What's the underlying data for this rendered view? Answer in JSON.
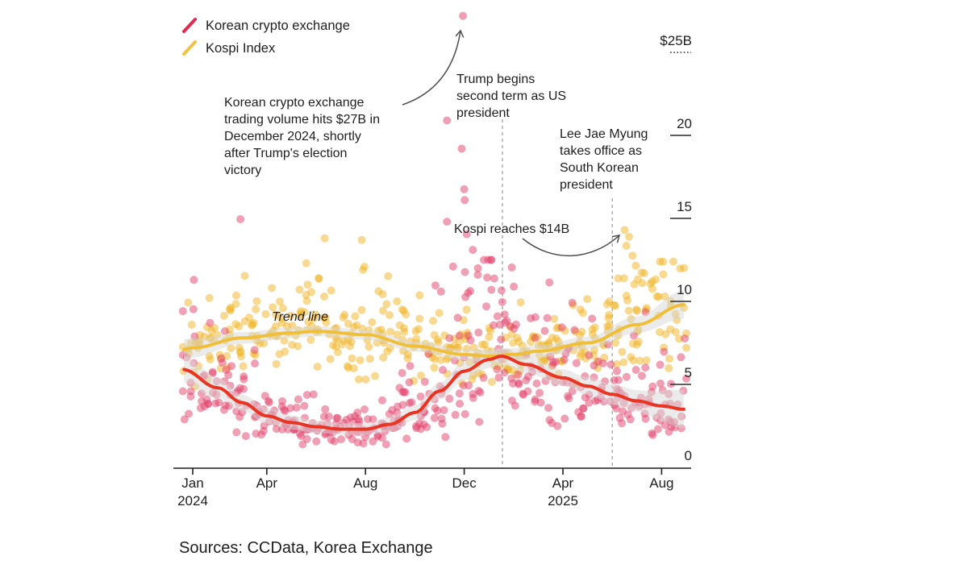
{
  "legend": {
    "items": [
      {
        "label": "Korean crypto exchange",
        "color": "#e12a4e"
      },
      {
        "label": "Kospi Index",
        "color": "#f2c343"
      }
    ]
  },
  "annotations": {
    "crypto_spike": {
      "lines": [
        "Korean crypto exchange",
        "trading volume hits $27B in",
        "December 2024, shortly",
        "after Trump's election",
        "victory"
      ]
    },
    "trump": {
      "lines": [
        "Trump begins",
        "second term as US",
        "president"
      ]
    },
    "lee": {
      "lines": [
        "Lee Jae Myung",
        "takes office as",
        "South Korean",
        "president"
      ]
    },
    "kospi_reach": {
      "text": "Kospi reaches $14B"
    }
  },
  "source": "Sources: CCData, Korea Exchange",
  "chart_data": {
    "type": "scatter",
    "trend_label": "Trend line",
    "x_axis": {
      "start": "Jan 2024",
      "end": "Aug 2025",
      "tick_months": [
        0,
        3,
        7,
        11,
        15,
        19
      ],
      "tick_labels": [
        "Jan",
        "Apr",
        "Aug",
        "Dec",
        "Apr",
        "Aug"
      ],
      "year_labels": [
        {
          "month": 0,
          "label": "2024"
        },
        {
          "month": 15,
          "label": "2025"
        }
      ]
    },
    "y_axis": {
      "unit": "billions USD",
      "ticks": [
        0,
        5,
        10,
        15,
        20,
        25
      ],
      "tick_labels": [
        "0",
        "5",
        "10",
        "15",
        "20",
        "$25B"
      ],
      "ylim": [
        0,
        27.5
      ]
    },
    "event_lines": [
      {
        "month": 12.55,
        "label": "Trump begins second term as US president"
      },
      {
        "month": 17.0,
        "label": "Lee Jae Myung takes office as South Korean president"
      }
    ],
    "series": [
      {
        "key": "kospi",
        "name": "Kospi Index",
        "dot_color": "#f0b424",
        "dot_opacity": 0.5,
        "line_color": "#f0bf3a",
        "band_color": "#d8d8d8",
        "trend": [
          [
            -0.4,
            7.1
          ],
          [
            0,
            7.2
          ],
          [
            2,
            7.8
          ],
          [
            4,
            8.1
          ],
          [
            5,
            8.2
          ],
          [
            7,
            8.0
          ],
          [
            9,
            7.3
          ],
          [
            11,
            6.8
          ],
          [
            12,
            6.7
          ],
          [
            13,
            6.8
          ],
          [
            14,
            7.0
          ],
          [
            16,
            7.5
          ],
          [
            18,
            8.6
          ],
          [
            19.9,
            9.8
          ]
        ],
        "band_halfwidth": [
          [
            -0.4,
            0.6
          ],
          [
            2,
            0.35
          ],
          [
            6,
            0.3
          ],
          [
            10,
            0.32
          ],
          [
            12.5,
            0.38
          ],
          [
            16,
            0.38
          ],
          [
            18,
            0.5
          ],
          [
            19.9,
            0.85
          ]
        ],
        "scatter": {
          "count": 400,
          "seed": 20240101,
          "sigma": [
            [
              -0.4,
              0.15
            ],
            [
              6,
              0.16
            ],
            [
              10,
              0.15
            ],
            [
              14,
              0.16
            ],
            [
              17,
              0.18
            ],
            [
              20,
              0.19
            ]
          ],
          "clamp": [
            3.9,
            12.4
          ],
          "spike": {
            "range": [
              16.3,
              19.6
            ],
            "prob": 0.06,
            "value_range": [
              9.8,
              12.3
            ]
          }
        },
        "outliers": [
          [
            17.5,
            14.3
          ],
          [
            17.68,
            13.9
          ],
          [
            17.57,
            13.35
          ],
          [
            17.82,
            12.75
          ],
          [
            17.95,
            12.15
          ],
          [
            5.35,
            13.8
          ],
          [
            6.85,
            13.7
          ],
          [
            4.6,
            12.3
          ],
          [
            6.9,
            11.9
          ],
          [
            5.1,
            11.4
          ],
          [
            18.3,
            11.7
          ],
          [
            18.62,
            11.2
          ]
        ],
        "highlight": "Kospi reaches $14B"
      },
      {
        "key": "crypto",
        "name": "Korean crypto exchange",
        "dot_color": "#e1416b",
        "dot_opacity": 0.5,
        "line_color": "#e93423",
        "band_color": "#d8d8d8",
        "trend": [
          [
            -0.4,
            5.9
          ],
          [
            1,
            4.8
          ],
          [
            2,
            3.9
          ],
          [
            3,
            3.1
          ],
          [
            4,
            2.7
          ],
          [
            5,
            2.45
          ],
          [
            6,
            2.3
          ],
          [
            7,
            2.3
          ],
          [
            8,
            2.6
          ],
          [
            9,
            3.3
          ],
          [
            10,
            4.6
          ],
          [
            11,
            5.8
          ],
          [
            12,
            6.5
          ],
          [
            12.5,
            6.7
          ],
          [
            13.5,
            6.2
          ],
          [
            15,
            5.4
          ],
          [
            16,
            4.9
          ],
          [
            17,
            4.4
          ],
          [
            18,
            4.0
          ],
          [
            19,
            3.7
          ],
          [
            19.9,
            3.5
          ]
        ],
        "band_halfwidth": [
          [
            -0.4,
            0.8
          ],
          [
            2,
            0.5
          ],
          [
            6,
            0.35
          ],
          [
            9,
            0.45
          ],
          [
            11,
            0.55
          ],
          [
            12.5,
            0.5
          ],
          [
            15,
            0.5
          ],
          [
            18,
            0.65
          ],
          [
            19.9,
            1.15
          ]
        ],
        "scatter": {
          "count": 410,
          "seed": 77,
          "sigma": [
            [
              -0.4,
              0.3
            ],
            [
              3,
              0.27
            ],
            [
              6,
              0.24
            ],
            [
              8,
              0.28
            ],
            [
              9.5,
              0.38
            ],
            [
              12,
              0.42
            ],
            [
              13.5,
              0.38
            ],
            [
              16,
              0.34
            ],
            [
              18,
              0.34
            ],
            [
              20,
              0.36
            ]
          ],
          "clamp": [
            0.8,
            12.5
          ],
          "spike": {
            "range": [
              9.8,
              13.0
            ],
            "prob": 0.07,
            "value_range": [
              8.0,
              12.5
            ]
          }
        },
        "outliers": [
          [
            10.95,
            27.2
          ],
          [
            10.3,
            20.9
          ],
          [
            10.9,
            19.2
          ],
          [
            11.0,
            16.75
          ],
          [
            11.02,
            16.1
          ],
          [
            10.3,
            14.8
          ],
          [
            11.1,
            14.05
          ],
          [
            1.93,
            14.95
          ],
          [
            11.35,
            13.1
          ],
          [
            10.55,
            12.1
          ],
          [
            11.55,
            11.6
          ],
          [
            12.1,
            10.7
          ],
          [
            11.9,
            9.7
          ],
          [
            12.35,
            9.1
          ],
          [
            13.1,
            8.6
          ]
        ],
        "highlight": "Korean crypto exchange trading volume hits $27B in December 2024"
      }
    ]
  }
}
